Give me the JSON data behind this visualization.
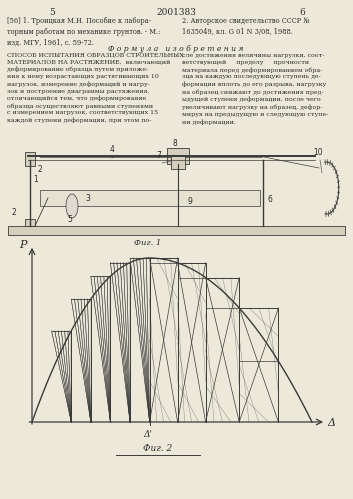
{
  "page_numbers_left": "5",
  "page_numbers_center": "2001383",
  "page_numbers_right": "6",
  "background_color": "#ede9da",
  "line_color": "#3a3a3a",
  "text_color": "#2a2a2a",
  "fig1_caption": "Фиг. 1",
  "fig2_caption": "Фиг. 2",
  "axis_x": "Δ",
  "axis_y": "P",
  "delta_prime": "Δ'"
}
